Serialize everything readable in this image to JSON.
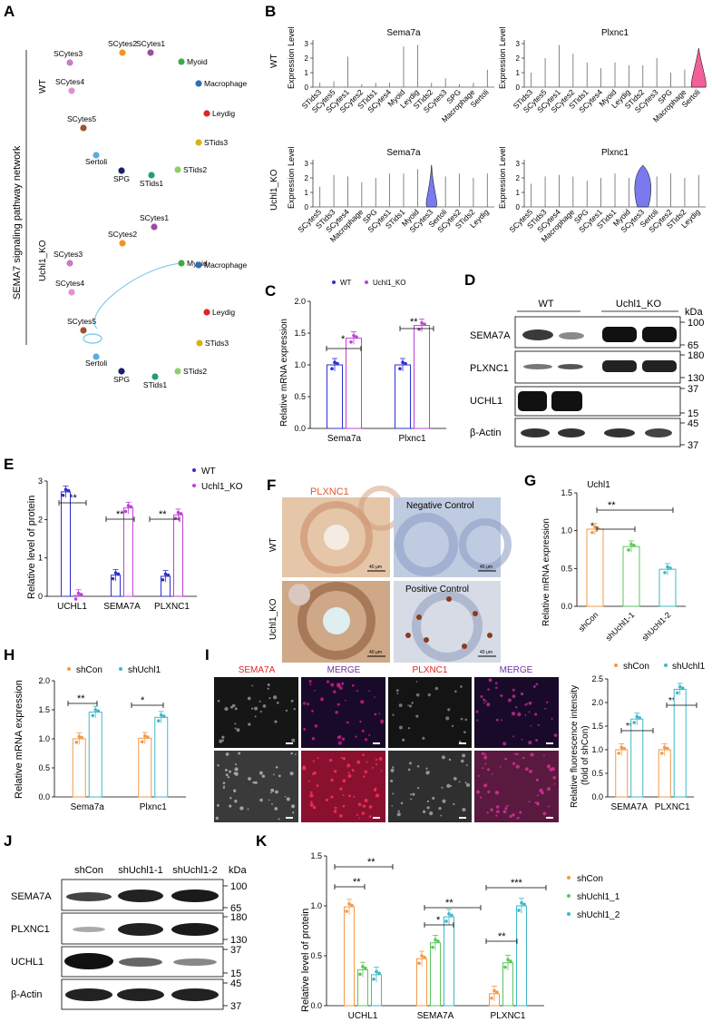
{
  "panels": {
    "A": "A",
    "B": "B",
    "C": "C",
    "D": "D",
    "E": "E",
    "F": "F",
    "G": "G",
    "H": "H",
    "I": "I",
    "J": "J",
    "K": "K"
  },
  "panel_a": {
    "vertical_title": "SEMA7 signaling pathway network",
    "wt_label": "WT",
    "ko_label": "Uchl1_KO",
    "nodes": [
      {
        "name": "SCytes1",
        "color": "#9b4fa0"
      },
      {
        "name": "Myoid",
        "color": "#3daa3d"
      },
      {
        "name": "Macrophage",
        "color": "#2c6fb5"
      },
      {
        "name": "Leydig",
        "color": "#e02525"
      },
      {
        "name": "STids3",
        "color": "#d9b215"
      },
      {
        "name": "STids2",
        "color": "#8fcf6a"
      },
      {
        "name": "STids1",
        "color": "#1f9e77"
      },
      {
        "name": "SPG",
        "color": "#1a1f6e"
      },
      {
        "name": "Sertoli",
        "color": "#5aaedc"
      },
      {
        "name": "SCytes5",
        "color": "#a0522d"
      },
      {
        "name": "SCytes4",
        "color": "#e48fd2"
      },
      {
        "name": "SCytes3",
        "color": "#c97cc0"
      },
      {
        "name": "SCytes2",
        "color": "#f0961e"
      }
    ]
  },
  "panel_b": {
    "ylabel": "Expression Level",
    "wt_label": "WT",
    "ko_label": "Uchl1_KO",
    "yticks": [
      "0",
      "1",
      "2",
      "3"
    ],
    "plots": [
      {
        "title": "Sema7a",
        "row": "WT",
        "categories": [
          "STids3",
          "SCytes5",
          "SCytes1",
          "SCytes2",
          "STids1",
          "SCytes4",
          "Myoid",
          "Leydig",
          "STids2",
          "SCytes3",
          "SPG",
          "Macrophage",
          "Sertoli"
        ]
      },
      {
        "title": "Plxnc1",
        "row": "WT",
        "categories": [
          "STids3",
          "SCytes5",
          "SCytes1",
          "SCytes2",
          "STids1",
          "SCytes4",
          "Myoid",
          "Leydig",
          "STids2",
          "SCytes3",
          "SPG",
          "Macrophage",
          "Sertoli"
        ]
      },
      {
        "title": "Sema7a",
        "row": "Uchl1_KO",
        "categories": [
          "SCytes5",
          "STids3",
          "SCytes4",
          "Macrophage",
          "SPG",
          "SCytes1",
          "STids1",
          "Myoid",
          "SCytes3",
          "Sertoli",
          "SCytes2",
          "STids2",
          "Leydig"
        ]
      },
      {
        "title": "Plxnc1",
        "row": "Uchl1_KO",
        "categories": [
          "SCytes5",
          "STids3",
          "SCytes4",
          "Macrophage",
          "SPG",
          "SCytes1",
          "STids1",
          "Myoid",
          "SCytes3",
          "Sertoli",
          "SCytes2",
          "STids2",
          "Leydig"
        ]
      }
    ]
  },
  "panel_c": {
    "ylabel": "Relative mRNA expression",
    "legend": [
      "WT",
      "Uchl1_KO"
    ],
    "sig": [
      "*",
      "**"
    ]
  },
  "panel_d": {
    "groups": [
      "WT",
      "Uchl1_KO"
    ],
    "unit": "kDa",
    "rows": [
      "SEMA7A",
      "PLXNC1",
      "UCHL1",
      "β-Actin"
    ],
    "markers": [
      "100",
      "65",
      "180",
      "130",
      "37",
      "15",
      "45",
      "37"
    ]
  },
  "panel_e": {
    "ylabel": "Relative level of protein",
    "legend": [
      "WT",
      "Uchl1_KO"
    ],
    "sig": [
      "***",
      "**",
      "**"
    ]
  },
  "panel_f": {
    "title": "PLXNC1",
    "wt_label": "WT",
    "ko_label": "Uchl1_KO",
    "neg": "Negative Control",
    "pos": "Positive Control",
    "scale": "40 μm"
  },
  "panel_g": {
    "title": "Uchl1",
    "ylabel": "Relative mRNA expression",
    "sig": [
      "*",
      "**"
    ]
  },
  "panel_h": {
    "ylabel": "Relative mRNA expression",
    "legend": [
      "shCon",
      "shUchl1"
    ],
    "sig": [
      "**",
      "*"
    ]
  },
  "panel_i": {
    "cols": [
      "SEMA7A",
      "MERGE",
      "PLXNC1",
      "MERGE"
    ],
    "rows": [
      "shCon",
      "shUchl1"
    ],
    "ylabel": "Relative fluorescence intensity",
    "ylabel2": "(fold of shCon)",
    "legend": [
      "shCon",
      "shUchl1"
    ],
    "sig": [
      "****",
      "****"
    ]
  },
  "panel_j": {
    "groups": [
      "shCon",
      "shUchl1-1",
      "shUchl1-2"
    ],
    "unit": "kDa",
    "rows": [
      "SEMA7A",
      "PLXNC1",
      "UCHL1",
      "β-Actin"
    ],
    "markers": [
      "100",
      "65",
      "180",
      "130",
      "37",
      "15",
      "45",
      "37"
    ]
  },
  "panel_k": {
    "ylabel": "Relative level of protein",
    "legend": [
      "shCon",
      "shUchl1_1",
      "shUchl1_2"
    ],
    "sig": [
      "**",
      "**",
      "*",
      "**",
      "**",
      "***"
    ]
  },
  "colors": {
    "wt": "#2f2fd0",
    "ko": "#c040d8",
    "shcon": "#f29a4a",
    "shuchl1": "#3fb8c8",
    "sh1": "#5cc65c",
    "sh2": "#3fb8c8"
  },
  "chart_data": [
    {
      "type": "bar",
      "panel": "C",
      "categories": [
        "Sema7a",
        "Plxnc1"
      ],
      "series": [
        {
          "name": "WT",
          "values": [
            1.0,
            1.0
          ]
        },
        {
          "name": "Uchl1_KO",
          "values": [
            1.42,
            1.62
          ]
        }
      ],
      "ylabel": "Relative mRNA expression",
      "ylim": [
        0,
        2.0
      ],
      "yticks": [
        0.0,
        0.5,
        1.0,
        1.5,
        2.0
      ]
    },
    {
      "type": "bar",
      "panel": "E",
      "categories": [
        "UCHL1",
        "SEMA7A",
        "PLXNC1"
      ],
      "series": [
        {
          "name": "WT",
          "values": [
            2.72,
            0.55,
            0.52
          ]
        },
        {
          "name": "Uchl1_KO",
          "values": [
            0.02,
            2.3,
            2.12
          ]
        }
      ],
      "ylabel": "Relative level of protein",
      "ylim": [
        0,
        3
      ],
      "yticks": [
        0,
        1,
        2,
        3
      ]
    },
    {
      "type": "bar",
      "panel": "G",
      "title": "Uchl1",
      "categories": [
        "shCon",
        "shUchl1-1",
        "shUchl1-2"
      ],
      "values": [
        1.02,
        0.79,
        0.49
      ],
      "ylabel": "Relative mRNA expression",
      "ylim": [
        0,
        1.5
      ],
      "yticks": [
        0.0,
        0.5,
        1.0,
        1.5
      ]
    },
    {
      "type": "bar",
      "panel": "H",
      "categories": [
        "Sema7a",
        "Plxnc1"
      ],
      "series": [
        {
          "name": "shCon",
          "values": [
            1.0,
            1.01
          ]
        },
        {
          "name": "shUchl1",
          "values": [
            1.46,
            1.37
          ]
        }
      ],
      "ylabel": "Relative mRNA expression",
      "ylim": [
        0,
        2.0
      ],
      "yticks": [
        0.0,
        0.5,
        1.0,
        1.5,
        2.0
      ]
    },
    {
      "type": "bar",
      "panel": "I",
      "categories": [
        "SEMA7A",
        "PLXNC1"
      ],
      "series": [
        {
          "name": "shCon",
          "values": [
            1.0,
            1.0
          ]
        },
        {
          "name": "shUchl1",
          "values": [
            1.65,
            2.28
          ]
        }
      ],
      "ylabel": "Relative fluorescence intensity (fold of shCon)",
      "ylim": [
        0,
        2.5
      ],
      "yticks": [
        0.0,
        0.5,
        1.0,
        1.5,
        2.0,
        2.5
      ]
    },
    {
      "type": "bar",
      "panel": "K",
      "categories": [
        "UCHL1",
        "SEMA7A",
        "PLXNC1"
      ],
      "series": [
        {
          "name": "shCon",
          "values": [
            0.99,
            0.47,
            0.12
          ]
        },
        {
          "name": "shUchl1_1",
          "values": [
            0.36,
            0.63,
            0.43
          ]
        },
        {
          "name": "shUchl1_2",
          "values": [
            0.31,
            0.89,
            1.0
          ]
        }
      ],
      "ylabel": "Relative level of protein",
      "ylim": [
        0,
        1.5
      ],
      "yticks": [
        0.0,
        0.5,
        1.0,
        1.5
      ]
    }
  ]
}
